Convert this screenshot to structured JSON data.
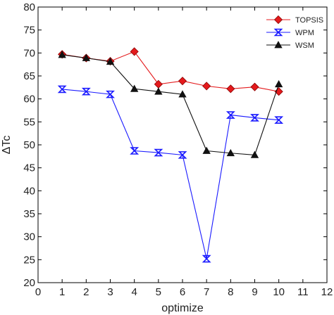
{
  "chart_data": {
    "type": "line",
    "xlabel": "optimize",
    "ylabel": "ΔTc",
    "xlim": [
      0,
      12
    ],
    "ylim": [
      20,
      80
    ],
    "xticks": [
      0,
      1,
      2,
      3,
      4,
      5,
      6,
      7,
      8,
      9,
      10,
      11,
      12
    ],
    "yticks": [
      20,
      25,
      30,
      35,
      40,
      45,
      50,
      55,
      60,
      65,
      70,
      75,
      80
    ],
    "grid": false,
    "legend_position": "top-right",
    "series": [
      {
        "name": "TOPSIS",
        "color": "#e41a1c",
        "marker": "diamond",
        "x": [
          1,
          2,
          3,
          4,
          5,
          6,
          7,
          8,
          9,
          10
        ],
        "y": [
          69.7,
          68.9,
          68.2,
          70.3,
          63.2,
          63.9,
          62.8,
          62.2,
          62.6,
          61.6
        ]
      },
      {
        "name": "WPM",
        "color": "#1a1aff",
        "marker": "hourglass",
        "x": [
          1,
          2,
          3,
          4,
          5,
          6,
          7,
          8,
          9,
          10
        ],
        "y": [
          62.1,
          61.6,
          61.0,
          48.7,
          48.3,
          47.8,
          25.2,
          56.5,
          55.9,
          55.4
        ]
      },
      {
        "name": "WSM",
        "color": "#111111",
        "marker": "triangle",
        "x": [
          1,
          2,
          3,
          4,
          5,
          6,
          7,
          8,
          9,
          10
        ],
        "y": [
          69.6,
          68.9,
          68.1,
          62.2,
          61.6,
          61.0,
          48.7,
          48.2,
          47.8,
          63.2
        ]
      }
    ]
  }
}
